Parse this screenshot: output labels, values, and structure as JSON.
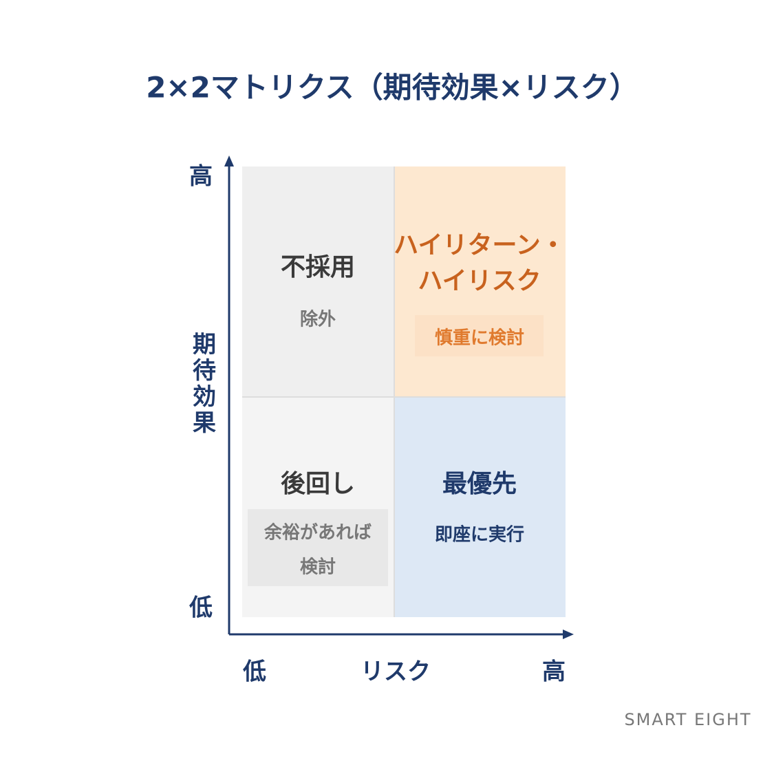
{
  "title": "2×2マトリクス（期待効果×リスク）",
  "y_axis": {
    "label": "期待効果",
    "high": "高",
    "low": "低"
  },
  "x_axis": {
    "label": "リスク",
    "low": "低",
    "high": "高"
  },
  "quadrants": [
    {
      "title": [
        "不採用"
      ],
      "note": [
        "除外"
      ]
    },
    {
      "title": [
        "ハイリターン・",
        "ハイリスク"
      ],
      "note": [
        "慎重に検討"
      ]
    },
    {
      "title": [
        "後回し"
      ],
      "note": [
        "余裕があれば",
        "検討"
      ]
    },
    {
      "title": [
        "最優先"
      ],
      "note": [
        "即座に実行"
      ]
    }
  ],
  "footer": "SMART EIGHT"
}
